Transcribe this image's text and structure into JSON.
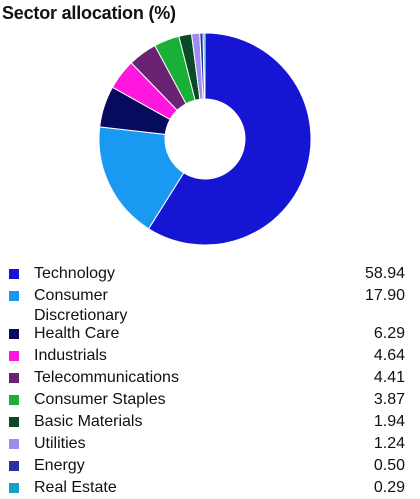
{
  "title": "Sector allocation (%)",
  "chart_data": {
    "type": "pie",
    "variant": "donut",
    "title": "Sector allocation (%)",
    "legend_position": "bottom",
    "categories": [
      "Technology",
      "Consumer Discretionary",
      "Health Care",
      "Industrials",
      "Telecommunications",
      "Consumer Staples",
      "Basic Materials",
      "Utilities",
      "Energy",
      "Real Estate"
    ],
    "values": [
      58.94,
      17.9,
      6.29,
      4.64,
      4.41,
      3.87,
      1.94,
      1.24,
      0.5,
      0.29
    ],
    "value_labels": [
      "58.94",
      "17.90",
      "6.29",
      "4.64",
      "4.41",
      "3.87",
      "1.94",
      "1.24",
      "0.50",
      "0.29"
    ],
    "label_lines": [
      [
        "Technology"
      ],
      [
        "Consumer",
        "Discretionary"
      ],
      [
        "Health Care"
      ],
      [
        "Industrials"
      ],
      [
        "Telecommunications"
      ],
      [
        "Consumer Staples"
      ],
      [
        "Basic Materials"
      ],
      [
        "Utilities"
      ],
      [
        "Energy"
      ],
      [
        "Real Estate"
      ]
    ],
    "colors": [
      "#1515d3",
      "#1a99f3",
      "#060b5e",
      "#ff17e0",
      "#6a2373",
      "#19b038",
      "#0a4a26",
      "#9f8cf2",
      "#2b2fa5",
      "#14a2c7"
    ]
  }
}
